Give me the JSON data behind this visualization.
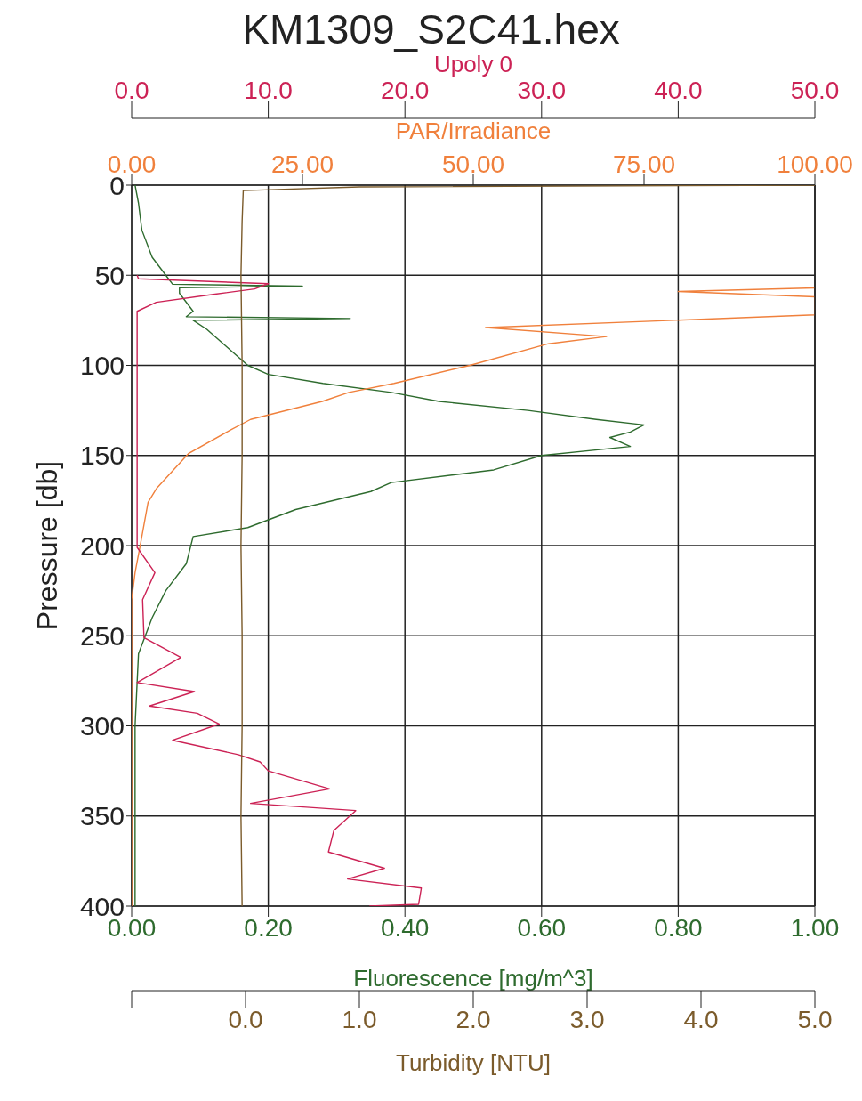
{
  "chart_data": [
    {
      "type": "line",
      "title": "KM1309_S2C41.hex",
      "xlabel": "Fluorescence [mg/m^3]",
      "ylabel": "Pressure [db]",
      "x2label": "PAR/Irradiance",
      "xlim": [
        0,
        1
      ],
      "xticks": [
        {
          "value": 0,
          "label": "0.00"
        },
        {
          "value": 0.2,
          "label": "0.20"
        },
        {
          "value": 0.4,
          "label": "0.40"
        },
        {
          "value": 0.6,
          "label": "0.60"
        },
        {
          "value": 0.8,
          "label": "0.80"
        },
        {
          "value": 1,
          "label": "1.00"
        }
      ],
      "x2lim": [
        0,
        100
      ],
      "x2ticks": [
        {
          "value": 0,
          "label": "0.00"
        },
        {
          "value": 25,
          "label": "25.00"
        },
        {
          "value": 50,
          "label": "50.00"
        },
        {
          "value": 75,
          "label": "75.00"
        },
        {
          "value": 100,
          "label": "100.00"
        }
      ],
      "ylim": [
        400,
        0
      ],
      "yticks": [
        0,
        50,
        100,
        150,
        200,
        250,
        300,
        350,
        400
      ],
      "grid": true,
      "marker": "none",
      "line_style": "solid",
      "series": [
        {
          "color": "#2e6b2e",
          "values": [
            0,
            10,
            25,
            40,
            50,
            55,
            56,
            57,
            60,
            70,
            73,
            74,
            75,
            80,
            90,
            100,
            105,
            110,
            115,
            120,
            125,
            130,
            133,
            137,
            140,
            145,
            150,
            158,
            165,
            170,
            180,
            190,
            195,
            210,
            225,
            240,
            260,
            300,
            400
          ],
          "x": [
            0.005,
            0.01,
            0.015,
            0.03,
            0.05,
            0.06,
            0.25,
            0.07,
            0.07,
            0.09,
            0.08,
            0.32,
            0.09,
            0.11,
            0.14,
            0.17,
            0.2,
            0.28,
            0.38,
            0.45,
            0.58,
            0.68,
            0.75,
            0.73,
            0.7,
            0.73,
            0.6,
            0.53,
            0.38,
            0.35,
            0.24,
            0.17,
            0.09,
            0.08,
            0.05,
            0.03,
            0.01,
            0.005,
            0.005
          ]
        },
        {
          "color": "#f0803c",
          "axis": "x2",
          "values": [
            57,
            59,
            62,
            72,
            79,
            84,
            88,
            100,
            110,
            115,
            120,
            130,
            136,
            149,
            168,
            176,
            199,
            215,
            230,
            400
          ],
          "x": [
            100,
            80,
            100,
            100,
            51.8,
            69.5,
            61,
            49.5,
            38.4,
            31.8,
            27.9,
            17.4,
            14.4,
            8.3,
            3.7,
            2.4,
            1.3,
            0.5,
            0,
            0
          ]
        }
      ]
    },
    {
      "type": "line",
      "xlabel": "Turbidity [NTU]",
      "x2label": "Upoly 0",
      "xlim": [
        -1,
        5
      ],
      "xticks": [
        {
          "value": -1,
          "label": null
        },
        {
          "value": 0,
          "label": "0.0"
        },
        {
          "value": 1,
          "label": "1.0"
        },
        {
          "value": 2,
          "label": "2.0"
        },
        {
          "value": 3,
          "label": "3.0"
        },
        {
          "value": 4,
          "label": "4.0"
        },
        {
          "value": 5,
          "label": "5.0"
        }
      ],
      "x2lim": [
        0,
        50
      ],
      "x2ticks": [
        {
          "value": 0,
          "label": "0.0"
        },
        {
          "value": 10,
          "label": "10.0"
        },
        {
          "value": 20,
          "label": "20.0"
        },
        {
          "value": 30,
          "label": "30.0"
        },
        {
          "value": 40,
          "label": "40.0"
        },
        {
          "value": 50,
          "label": "50.0"
        }
      ],
      "ylim": [
        400,
        0
      ],
      "tick_labels": "x",
      "marker": "none",
      "line_style": "solid",
      "series": [
        {
          "color": "#cc2255",
          "axis": "x2",
          "values": [
            50,
            52,
            54.7,
            57.6,
            60.5,
            65,
            70,
            201,
            215,
            230,
            251,
            262,
            276,
            281,
            289,
            293,
            299,
            308,
            316,
            320,
            325,
            335,
            343,
            347,
            358,
            370,
            379,
            385,
            390,
            399,
            400
          ],
          "x": [
            0.4,
            0.5,
            10,
            9,
            6.1,
            1.8,
            0.4,
            0.4,
            1.7,
            0.8,
            0.9,
            3.6,
            0.4,
            4.6,
            1.3,
            4.8,
            6.4,
            3,
            7.8,
            9.4,
            10,
            14.5,
            8.7,
            16.4,
            14.8,
            14.4,
            18.5,
            15.8,
            21.2,
            21,
            17.4
          ]
        },
        {
          "color": "#7b5b2b",
          "values": [
            0,
            1,
            3,
            20,
            50,
            100,
            150,
            200,
            250,
            300,
            350,
            400
          ],
          "x": [
            5,
            1,
            -0.02,
            -0.03,
            -0.04,
            -0.03,
            -0.03,
            -0.04,
            -0.03,
            -0.03,
            -0.04,
            -0.03
          ]
        }
      ]
    }
  ]
}
